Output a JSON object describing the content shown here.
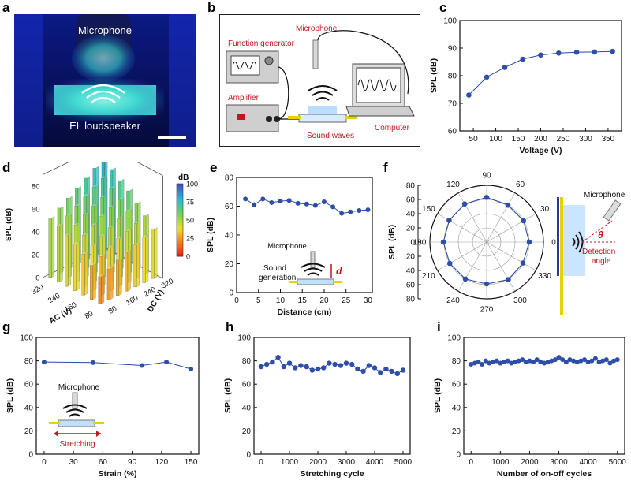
{
  "panels": {
    "a": {
      "letter": "a",
      "microphone_label": "Microphone",
      "device_label": "EL  loudspeaker"
    },
    "b": {
      "letter": "b",
      "labels": {
        "microphone": "Microphone",
        "function_generator": "Function generator",
        "amplifier": "Amplifier",
        "computer": "Computer",
        "sound_waves": "Sound waves"
      }
    },
    "d": {
      "letter": "d",
      "zlabel": "SPL (dB)",
      "xlabel": "AC (V)",
      "ylabel": "DC (V)",
      "z_ticks": [
        "0",
        "20",
        "40",
        "60",
        "80"
      ],
      "ac_ticks": [
        "80",
        "160",
        "240",
        "320"
      ],
      "dc_ticks": [
        "80",
        "160",
        "240",
        "320"
      ],
      "colorbar_title": "dB",
      "colorbar_ticks": [
        "100",
        "75",
        "50",
        "25",
        "0"
      ]
    },
    "f": {
      "letter": "f",
      "ylabel": "SPL (dB)",
      "ticks": [
        "80",
        "60",
        "40",
        "20",
        "0",
        "20",
        "40",
        "60",
        "80"
      ],
      "angle_labels": [
        "90",
        "60",
        "30",
        "0",
        "330",
        "300",
        "270",
        "240",
        "210",
        "180",
        "150",
        "120"
      ],
      "microphone_label": "Microphone",
      "theta_symbol": "θ",
      "detection_label_1": "Detection",
      "detection_label_2": "angle",
      "radial_max": 80
    }
  },
  "colors": {
    "series": "#2a4aa6",
    "marker": "#2f4ea8",
    "accent_red": "#c0181e"
  },
  "chart_data": [
    {
      "id": "c",
      "letter": "c",
      "type": "line",
      "x": [
        40,
        80,
        120,
        160,
        200,
        240,
        280,
        320,
        360
      ],
      "values": [
        73,
        79.5,
        83,
        86,
        87.5,
        88.2,
        88.5,
        88.6,
        88.8
      ],
      "xlabel": "Voltage (V)",
      "ylabel": "SPL (dB)",
      "xlim": [
        20,
        380
      ],
      "ylim": [
        60,
        100
      ],
      "xticks": [
        50,
        100,
        150,
        200,
        250,
        300,
        350
      ],
      "yticks": [
        60,
        70,
        80,
        90,
        100
      ]
    },
    {
      "id": "e",
      "letter": "e",
      "type": "line",
      "x": [
        2,
        4,
        6,
        8,
        10,
        12,
        14,
        16,
        18,
        20,
        22,
        24,
        26,
        28,
        30
      ],
      "values": [
        65,
        61,
        65,
        62.5,
        63.5,
        64,
        62,
        61.5,
        60.5,
        63,
        59.5,
        55,
        56,
        57,
        57.5
      ],
      "xlabel": "Distance (cm)",
      "ylabel": "SPL (dB)",
      "xlim": [
        0,
        31
      ],
      "ylim": [
        0,
        80
      ],
      "xticks": [
        0,
        5,
        10,
        15,
        20,
        25,
        30
      ],
      "yticks": [
        0,
        20,
        40,
        60,
        80
      ],
      "inset": {
        "microphone": "Microphone",
        "sound1": "Sound",
        "sound2": "generation",
        "d": "d"
      }
    },
    {
      "id": "g",
      "letter": "g",
      "type": "line",
      "x": [
        0,
        50,
        100,
        125,
        150
      ],
      "values": [
        79,
        78.5,
        76,
        79,
        73
      ],
      "xlabel": "Strain (%)",
      "ylabel": "SPL (dB)",
      "xlim": [
        -8,
        158
      ],
      "ylim": [
        0,
        100
      ],
      "xticks": [
        0,
        30,
        60,
        90,
        120,
        150
      ],
      "yticks": [
        0,
        20,
        40,
        60,
        80,
        100
      ],
      "inset": {
        "microphone": "Microphone",
        "stretching": "Stretching"
      }
    },
    {
      "id": "h",
      "letter": "h",
      "type": "line",
      "x": [
        0,
        200,
        400,
        600,
        800,
        1000,
        1200,
        1400,
        1600,
        1800,
        2000,
        2200,
        2400,
        2600,
        2800,
        3000,
        3200,
        3400,
        3600,
        3800,
        4000,
        4200,
        4400,
        4600,
        4800,
        5000
      ],
      "values": [
        75,
        77,
        79,
        83,
        75,
        78,
        74,
        76,
        75,
        72,
        73,
        74,
        78,
        77,
        76,
        78,
        77,
        73,
        71,
        76,
        74,
        70,
        73,
        71,
        69,
        72
      ],
      "xlabel": "Stretching cycle",
      "ylabel": "SPL (dB)",
      "xlim": [
        -250,
        5250
      ],
      "ylim": [
        0,
        100
      ],
      "xticks": [
        0,
        1000,
        2000,
        3000,
        4000,
        5000
      ],
      "yticks": [
        0,
        20,
        40,
        60,
        80,
        100
      ]
    },
    {
      "id": "i",
      "letter": "i",
      "type": "line",
      "x": [
        0,
        125,
        250,
        375,
        500,
        625,
        750,
        875,
        1000,
        1125,
        1250,
        1375,
        1500,
        1625,
        1750,
        1875,
        2000,
        2125,
        2250,
        2375,
        2500,
        2625,
        2750,
        2875,
        3000,
        3125,
        3250,
        3375,
        3500,
        3625,
        3750,
        3875,
        4000,
        4125,
        4250,
        4375,
        4500,
        4625,
        4750,
        4875,
        5000
      ],
      "values": [
        77,
        78,
        79,
        77,
        80,
        78,
        79,
        80,
        78,
        79,
        80,
        78,
        79,
        80,
        81,
        79,
        80,
        79,
        81,
        79,
        78,
        79,
        80,
        81,
        83,
        81,
        79,
        81,
        80,
        79,
        80,
        81,
        79,
        80,
        82,
        79,
        80,
        81,
        78,
        80,
        81
      ],
      "xlabel": "Number of on-off cycles",
      "ylabel": "SPL (dB)",
      "xlim": [
        -250,
        5250
      ],
      "ylim": [
        0,
        100
      ],
      "xticks": [
        0,
        1000,
        2000,
        3000,
        4000,
        5000
      ],
      "yticks": [
        0,
        20,
        40,
        60,
        80,
        100
      ]
    },
    {
      "id": "f",
      "letter": "f",
      "type": "polar",
      "angles_deg": [
        0,
        30,
        60,
        90,
        120,
        150,
        180,
        210,
        240,
        270,
        300,
        330
      ],
      "values": [
        60,
        60,
        60,
        63,
        62,
        61,
        61,
        60,
        60,
        59,
        61,
        59
      ],
      "rlim": [
        0,
        80
      ]
    },
    {
      "id": "d",
      "type": "bar3d",
      "ac": [
        80,
        120,
        160,
        200,
        240,
        280,
        320
      ],
      "dc": [
        80,
        120,
        160,
        200,
        240,
        280,
        320
      ],
      "values": [
        [
          24,
          27,
          31,
          34,
          37,
          40,
          43
        ],
        [
          30,
          34,
          38,
          42,
          45,
          48,
          51
        ],
        [
          36,
          40,
          44,
          48,
          52,
          55,
          58
        ],
        [
          41,
          45,
          50,
          54,
          58,
          61,
          65
        ],
        [
          45,
          50,
          55,
          59,
          63,
          67,
          70
        ],
        [
          49,
          54,
          59,
          64,
          68,
          72,
          76
        ],
        [
          52,
          57,
          62,
          67,
          72,
          77,
          82
        ]
      ],
      "zlim": [
        0,
        100
      ]
    }
  ]
}
